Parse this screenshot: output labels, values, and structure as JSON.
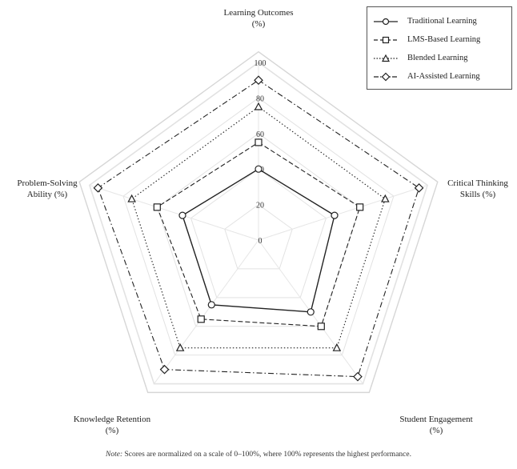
{
  "chart_data": {
    "type": "radar",
    "axes": [
      {
        "label_line1": "Learning Outcomes",
        "label_line2": "(%)"
      },
      {
        "label_line1": "Critical Thinking",
        "label_line2": "Skills (%)"
      },
      {
        "label_line1": "Student Engagement",
        "label_line2": "(%)"
      },
      {
        "label_line1": "Knowledge Retention",
        "label_line2": "(%)"
      },
      {
        "label_line1": "Problem-Solving",
        "label_line2": "Ability (%)"
      }
    ],
    "r_ticks": [
      "0",
      "20",
      "40",
      "60",
      "80",
      "100"
    ],
    "rlim": [
      0,
      100
    ],
    "series": [
      {
        "name": "Traditional Learning",
        "values": [
          40,
          45,
          50,
          45,
          45
        ],
        "marker": "circle",
        "dash": "solid"
      },
      {
        "name": "LMS-Based Learning",
        "values": [
          55,
          60,
          60,
          55,
          60
        ],
        "marker": "square",
        "dash": "dashed"
      },
      {
        "name": "Blended Learning",
        "values": [
          75,
          75,
          75,
          75,
          75
        ],
        "marker": "triangle",
        "dash": "dotted"
      },
      {
        "name": "AI-Assisted Learning",
        "values": [
          90,
          95,
          95,
          90,
          95
        ],
        "marker": "diamond",
        "dash": "dashdot"
      }
    ],
    "legend_position": "top-right",
    "grid": true
  },
  "note": {
    "prefix": "Note:",
    "text": " Scores are normalized on a scale of 0–100%, where 100% represents the highest performance."
  }
}
